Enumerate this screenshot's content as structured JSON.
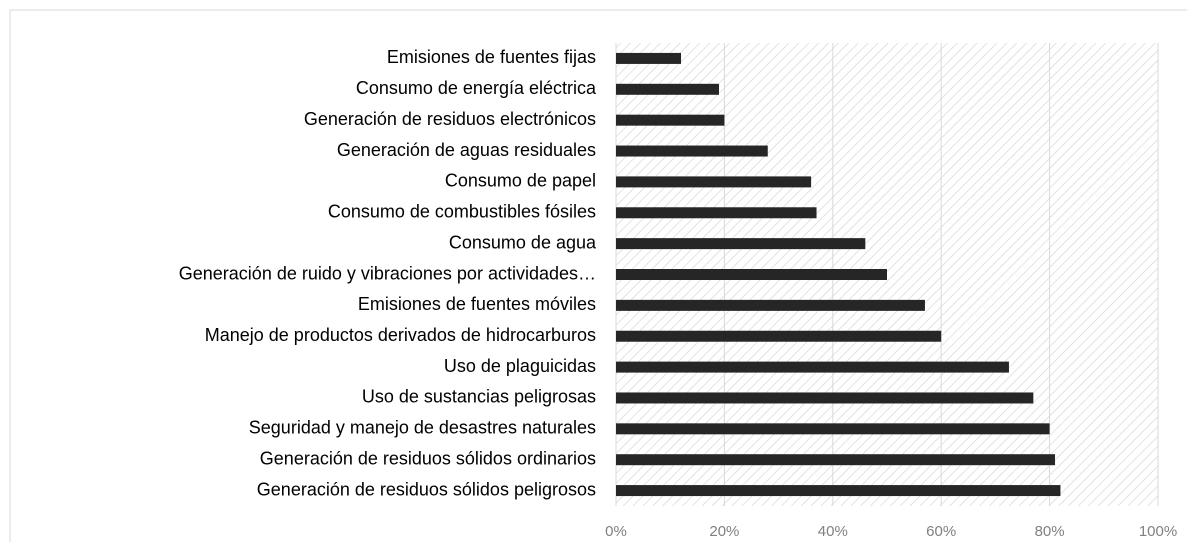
{
  "chart_data": {
    "type": "barh",
    "categories": [
      "Emisiones de fuentes fijas",
      "Consumo de energía eléctrica",
      "Generación de residuos electrónicos",
      "Generación de aguas residuales",
      "Consumo de papel",
      "Consumo de combustibles fósiles",
      "Consumo de agua",
      "Generación de ruido y vibraciones por actividades…",
      "Emisiones de fuentes móviles",
      "Manejo de productos derivados de hidrocarburos",
      "Uso de plaguicidas",
      "Uso de sustancias peligrosas",
      "Seguridad y manejo de desastres naturales",
      "Generación de residuos sólidos ordinarios",
      "Generación de residuos sólidos peligrosos"
    ],
    "values": [
      12,
      19,
      20,
      28,
      36,
      37,
      46,
      50,
      57,
      60,
      72.5,
      77,
      80,
      81,
      82
    ],
    "color": "#262626",
    "xlim": [
      0,
      100
    ],
    "xticks": [
      {
        "value": 0,
        "label": "0%"
      },
      {
        "value": 20,
        "label": "20%"
      },
      {
        "value": 40,
        "label": "40%"
      },
      {
        "value": 60,
        "label": "60%"
      },
      {
        "value": 80,
        "label": "80%"
      },
      {
        "value": 100,
        "label": "100%"
      }
    ],
    "grid": true
  }
}
